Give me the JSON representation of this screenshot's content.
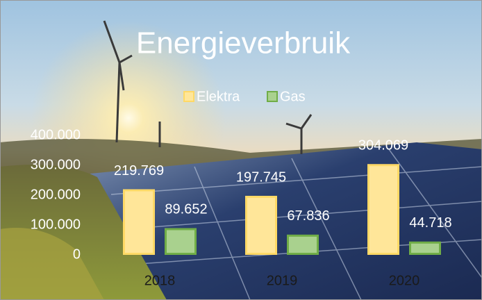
{
  "chart_data": {
    "type": "bar",
    "title": "Energieverbruik",
    "categories": [
      "2018",
      "2019",
      "2020"
    ],
    "series": [
      {
        "name": "Elektra",
        "color": "#ffe699",
        "values": [
          219769,
          197745,
          304069
        ],
        "value_labels": [
          "219.769",
          "197.745",
          "304.069"
        ]
      },
      {
        "name": "Gas",
        "color": "#a9d18e",
        "values": [
          89652,
          67836,
          44718
        ],
        "value_labels": [
          "89.652",
          "67.836",
          "44.718"
        ]
      }
    ],
    "ylim": [
      0,
      400000
    ],
    "yticks": [
      0,
      {
        "value": 100000,
        "label": "100.000"
      },
      {
        "value": 200000,
        "label": "200.000"
      },
      {
        "value": 300000,
        "label": "300.000"
      },
      {
        "value": 400000,
        "label": "400.000"
      }
    ],
    "legend": "top"
  }
}
